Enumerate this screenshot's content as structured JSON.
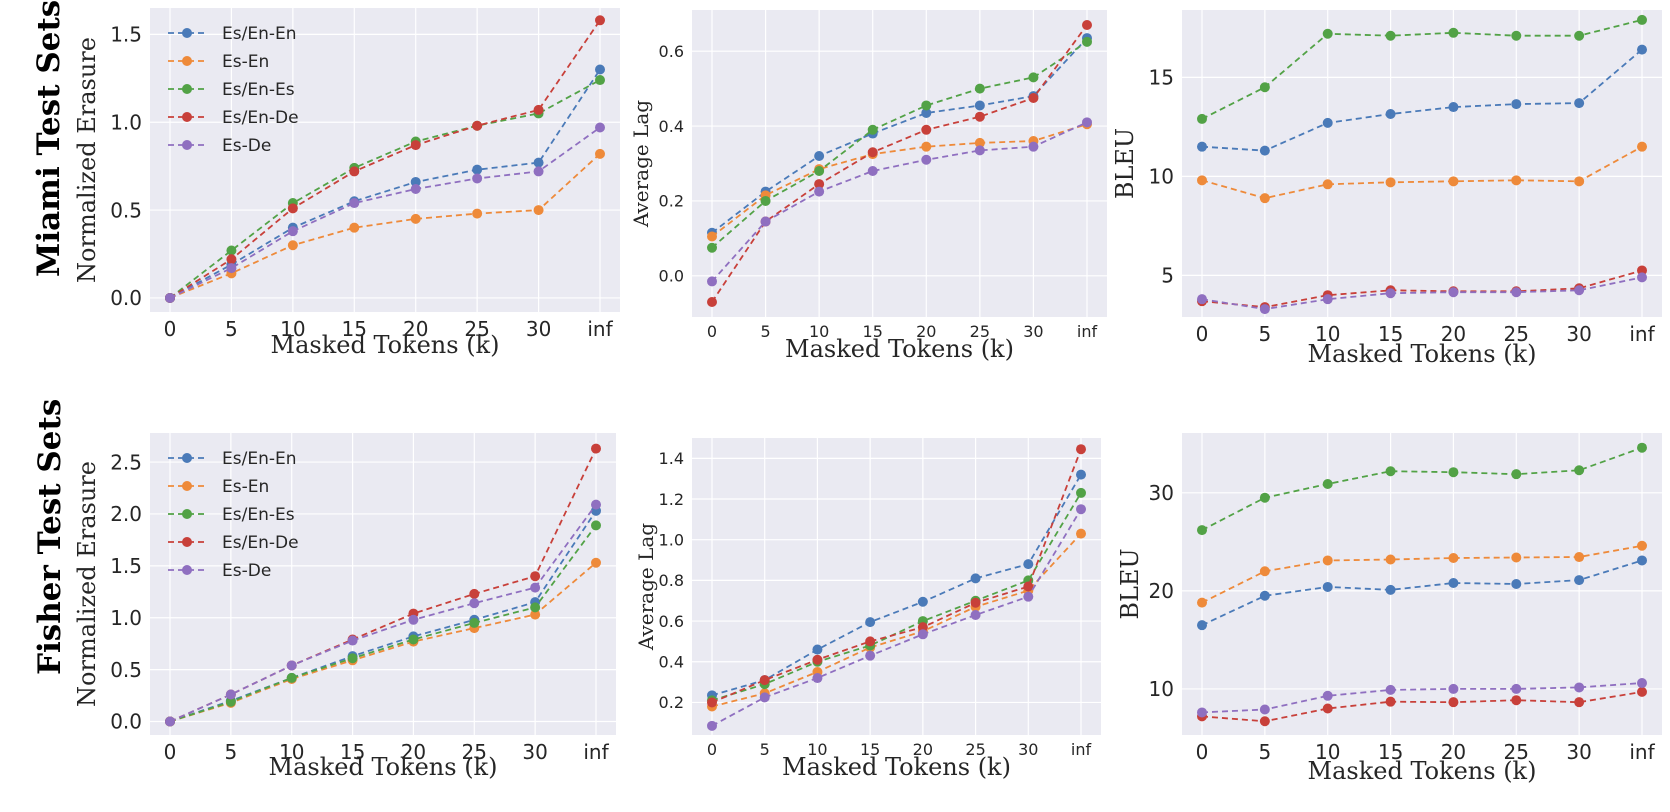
{
  "row_labels": [
    "Miami Test Sets",
    "Fisher Test Sets"
  ],
  "series_names": [
    "Es/En-En",
    "Es-En",
    "Es/En-Es",
    "Es/En-De",
    "Es-De"
  ],
  "colors": [
    "#4a7ab8",
    "#ee8a3a",
    "#52a246",
    "#c8403a",
    "#8f6fc0"
  ],
  "chart_data": [
    {
      "type": "line",
      "title": "",
      "xlabel": "Masked Tokens (k)",
      "ylabel": "Normalized Erasure",
      "categories": [
        "0",
        "5",
        "10",
        "15",
        "20",
        "25",
        "30",
        "inf"
      ],
      "ylim": [
        -0.08,
        1.65
      ],
      "yticks": [
        "0.0",
        "0.5",
        "1.0",
        "1.5"
      ],
      "legend": "top-left",
      "series": [
        {
          "name": "Es/En-En",
          "values": [
            0,
            0.19,
            0.4,
            0.55,
            0.66,
            0.73,
            0.77,
            1.3
          ]
        },
        {
          "name": "Es-En",
          "values": [
            0,
            0.14,
            0.3,
            0.4,
            0.45,
            0.48,
            0.5,
            0.82
          ]
        },
        {
          "name": "Es/En-Es",
          "values": [
            0,
            0.27,
            0.54,
            0.74,
            0.89,
            0.98,
            1.05,
            1.24
          ]
        },
        {
          "name": "Es/En-De",
          "values": [
            0,
            0.22,
            0.51,
            0.72,
            0.87,
            0.98,
            1.07,
            1.58
          ]
        },
        {
          "name": "Es-De",
          "values": [
            0,
            0.17,
            0.38,
            0.54,
            0.62,
            0.68,
            0.72,
            0.97
          ]
        }
      ]
    },
    {
      "type": "line",
      "title": "",
      "xlabel": "Masked Tokens (k)",
      "ylabel": "Average Lag",
      "categories": [
        "0",
        "5",
        "10",
        "15",
        "20",
        "25",
        "30",
        "inf"
      ],
      "ylim": [
        -0.11,
        0.71
      ],
      "yticks": [
        "0.0",
        "0.2",
        "0.4",
        "0.6"
      ],
      "legend": "none",
      "series": [
        {
          "name": "Es/En-En",
          "values": [
            0.115,
            0.225,
            0.32,
            0.38,
            0.435,
            0.455,
            0.48,
            0.635
          ]
        },
        {
          "name": "Es-En",
          "values": [
            0.105,
            0.215,
            0.285,
            0.325,
            0.345,
            0.355,
            0.36,
            0.405
          ]
        },
        {
          "name": "Es/En-Es",
          "values": [
            0.075,
            0.2,
            0.28,
            0.39,
            0.455,
            0.5,
            0.53,
            0.625
          ]
        },
        {
          "name": "Es/En-De",
          "values": [
            -0.07,
            0.145,
            0.245,
            0.33,
            0.39,
            0.425,
            0.475,
            0.67
          ]
        },
        {
          "name": "Es-De",
          "values": [
            -0.015,
            0.145,
            0.225,
            0.28,
            0.31,
            0.335,
            0.345,
            0.41
          ]
        }
      ]
    },
    {
      "type": "line",
      "title": "",
      "xlabel": "Masked Tokens (k)",
      "ylabel": "BLEU",
      "categories": [
        "0",
        "5",
        "10",
        "15",
        "20",
        "25",
        "30",
        "inf"
      ],
      "ylim": [
        2.9,
        18.4
      ],
      "yticks": [
        "5",
        "10",
        "15"
      ],
      "legend": "none",
      "series": [
        {
          "name": "Es/En-En",
          "values": [
            11.5,
            11.3,
            12.7,
            13.15,
            13.5,
            13.65,
            13.7,
            16.4
          ]
        },
        {
          "name": "Es-En",
          "values": [
            9.8,
            8.9,
            9.6,
            9.7,
            9.75,
            9.8,
            9.75,
            11.5
          ]
        },
        {
          "name": "Es/En-Es",
          "values": [
            12.9,
            14.5,
            17.2,
            17.1,
            17.25,
            17.1,
            17.1,
            17.9
          ]
        },
        {
          "name": "Es/En-De",
          "values": [
            3.7,
            3.4,
            4.0,
            4.25,
            4.2,
            4.2,
            4.35,
            5.25
          ]
        },
        {
          "name": "Es-De",
          "values": [
            3.8,
            3.3,
            3.8,
            4.1,
            4.15,
            4.15,
            4.25,
            4.9
          ]
        }
      ]
    },
    {
      "type": "line",
      "title": "",
      "xlabel": "Masked Tokens (k)",
      "ylabel": "Normalized Erasure",
      "categories": [
        "0",
        "5",
        "10",
        "15",
        "20",
        "25",
        "30",
        "inf"
      ],
      "ylim": [
        -0.13,
        2.78
      ],
      "yticks": [
        "0.0",
        "0.5",
        "1.0",
        "1.5",
        "2.0",
        "2.5"
      ],
      "legend": "top-left",
      "series": [
        {
          "name": "Es/En-En",
          "values": [
            0,
            0.2,
            0.42,
            0.63,
            0.82,
            0.98,
            1.15,
            2.03
          ]
        },
        {
          "name": "Es-En",
          "values": [
            0,
            0.18,
            0.41,
            0.59,
            0.77,
            0.9,
            1.03,
            1.53
          ]
        },
        {
          "name": "Es/En-Es",
          "values": [
            0,
            0.19,
            0.42,
            0.61,
            0.79,
            0.95,
            1.1,
            1.89
          ]
        },
        {
          "name": "Es/En-De",
          "values": [
            0,
            0.26,
            0.54,
            0.79,
            1.04,
            1.23,
            1.4,
            2.63
          ]
        },
        {
          "name": "Es-De",
          "values": [
            0,
            0.26,
            0.54,
            0.78,
            0.98,
            1.14,
            1.29,
            2.09
          ]
        }
      ]
    },
    {
      "type": "line",
      "title": "",
      "xlabel": "Masked Tokens (k)",
      "ylabel": "Average Lag",
      "categories": [
        "0",
        "5",
        "10",
        "15",
        "20",
        "25",
        "30",
        "inf"
      ],
      "ylim": [
        0.04,
        1.5
      ],
      "yticks": [
        "0.2",
        "0.4",
        "0.6",
        "0.8",
        "1.0",
        "1.2",
        "1.4"
      ],
      "legend": "none",
      "series": [
        {
          "name": "Es/En-En",
          "values": [
            0.235,
            0.31,
            0.46,
            0.595,
            0.695,
            0.81,
            0.88,
            1.32
          ]
        },
        {
          "name": "Es-En",
          "values": [
            0.18,
            0.245,
            0.35,
            0.47,
            0.55,
            0.67,
            0.75,
            1.03
          ]
        },
        {
          "name": "Es/En-Es",
          "values": [
            0.21,
            0.29,
            0.4,
            0.48,
            0.6,
            0.7,
            0.8,
            1.23
          ]
        },
        {
          "name": "Es/En-De",
          "values": [
            0.2,
            0.31,
            0.41,
            0.5,
            0.57,
            0.69,
            0.77,
            1.445
          ]
        },
        {
          "name": "Es-De",
          "values": [
            0.085,
            0.225,
            0.32,
            0.43,
            0.535,
            0.63,
            0.72,
            1.15
          ]
        }
      ]
    },
    {
      "type": "line",
      "title": "",
      "xlabel": "Masked Tokens (k)",
      "ylabel": "BLEU",
      "categories": [
        "0",
        "5",
        "10",
        "15",
        "20",
        "25",
        "30",
        "inf"
      ],
      "ylim": [
        5.3,
        36.1
      ],
      "yticks": [
        "10",
        "20",
        "30"
      ],
      "legend": "none",
      "series": [
        {
          "name": "Es/En-En",
          "values": [
            16.5,
            19.5,
            20.4,
            20.1,
            20.8,
            20.7,
            21.1,
            23.1
          ]
        },
        {
          "name": "Es-En",
          "values": [
            18.8,
            22.0,
            23.1,
            23.2,
            23.35,
            23.4,
            23.45,
            24.6
          ]
        },
        {
          "name": "Es/En-Es",
          "values": [
            26.2,
            29.5,
            30.9,
            32.2,
            32.1,
            31.9,
            32.3,
            34.6
          ]
        },
        {
          "name": "Es/En-De",
          "values": [
            7.2,
            6.7,
            8.0,
            8.7,
            8.65,
            8.85,
            8.65,
            9.7
          ]
        },
        {
          "name": "Es-De",
          "values": [
            7.6,
            7.9,
            9.3,
            9.9,
            10.0,
            10.0,
            10.15,
            10.6
          ]
        }
      ]
    }
  ]
}
